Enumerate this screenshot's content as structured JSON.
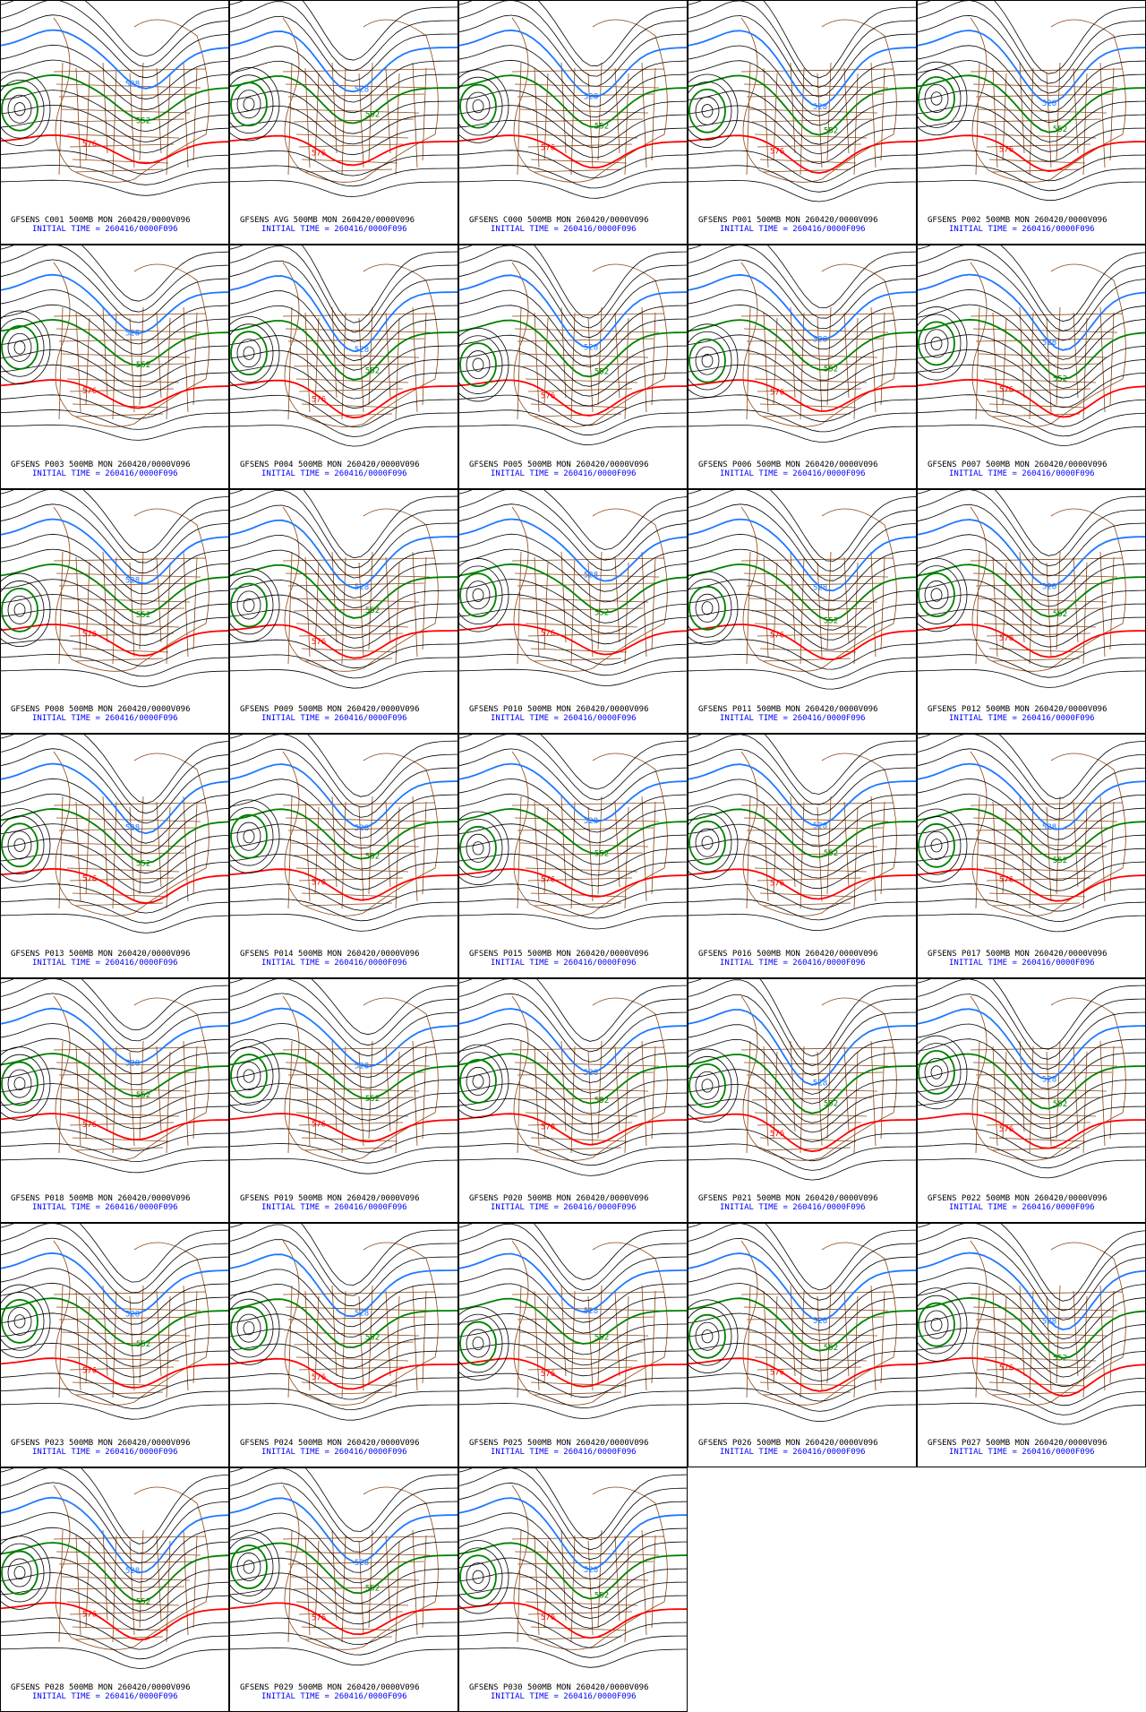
{
  "contour_labels": [
    "528",
    "552",
    "576"
  ],
  "panels": [
    {
      "title": "GFSENS C001 500MB MON 260420/0000V096",
      "initial": "INITIAL TIME = 260416/0000F096"
    },
    {
      "title": "GFSENS AVG 500MB MON 260420/0000V096",
      "initial": "INITIAL TIME = 260416/0000F096"
    },
    {
      "title": "GFSENS C000 500MB MON 260420/0000V096",
      "initial": "INITIAL TIME = 260416/0000F096"
    },
    {
      "title": "GFSENS P001 500MB MON 260420/0000V096",
      "initial": "INITIAL TIME = 260416/0000F096"
    },
    {
      "title": "GFSENS P002 500MB MON 260420/0000V096",
      "initial": "INITIAL TIME = 260416/0000F096"
    },
    {
      "title": "GFSENS P003 500MB MON 260420/0000V096",
      "initial": "INITIAL TIME = 260416/0000F096"
    },
    {
      "title": "GFSENS P004 500MB MON 260420/0000V096",
      "initial": "INITIAL TIME = 260416/0000F096"
    },
    {
      "title": "GFSENS P005 500MB MON 260420/0000V096",
      "initial": "INITIAL TIME = 260416/0000F096"
    },
    {
      "title": "GFSENS P006 500MB MON 260420/0000V096",
      "initial": "INITIAL TIME = 260416/0000F096"
    },
    {
      "title": "GFSENS P007 500MB MON 260420/0000V096",
      "initial": "INITIAL TIME = 260416/0000F096"
    },
    {
      "title": "GFSENS P008 500MB MON 260420/0000V096",
      "initial": "INITIAL TIME = 260416/0000F096"
    },
    {
      "title": "GFSENS P009 500MB MON 260420/0000V096",
      "initial": "INITIAL TIME = 260416/0000F096"
    },
    {
      "title": "GFSENS P010 500MB MON 260420/0000V096",
      "initial": "INITIAL TIME = 260416/0000F096"
    },
    {
      "title": "GFSENS P011 500MB MON 260420/0000V096",
      "initial": "INITIAL TIME = 260416/0000F096"
    },
    {
      "title": "GFSENS P012 500MB MON 260420/0000V096",
      "initial": "INITIAL TIME = 260416/0000F096"
    },
    {
      "title": "GFSENS P013 500MB MON 260420/0000V096",
      "initial": "INITIAL TIME = 260416/0000F096"
    },
    {
      "title": "GFSENS P014 500MB MON 260420/0000V096",
      "initial": "INITIAL TIME = 260416/0000F096"
    },
    {
      "title": "GFSENS P015 500MB MON 260420/0000V096",
      "initial": "INITIAL TIME = 260416/0000F096"
    },
    {
      "title": "GFSENS P016 500MB MON 260420/0000V096",
      "initial": "INITIAL TIME = 260416/0000F096"
    },
    {
      "title": "GFSENS P017 500MB MON 260420/0000V096",
      "initial": "INITIAL TIME = 260416/0000F096"
    },
    {
      "title": "GFSENS P018 500MB MON 260420/0000V096",
      "initial": "INITIAL TIME = 260416/0000F096"
    },
    {
      "title": "GFSENS P019 500MB MON 260420/0000V096",
      "initial": "INITIAL TIME = 260416/0000F096"
    },
    {
      "title": "GFSENS P020 500MB MON 260420/0000V096",
      "initial": "INITIAL TIME = 260416/0000F096"
    },
    {
      "title": "GFSENS P021 500MB MON 260420/0000V096",
      "initial": "INITIAL TIME = 260416/0000F096"
    },
    {
      "title": "GFSENS P022 500MB MON 260420/0000V096",
      "initial": "INITIAL TIME = 260416/0000F096"
    },
    {
      "title": "GFSENS P023 500MB MON 260420/0000V096",
      "initial": "INITIAL TIME = 260416/0000F096"
    },
    {
      "title": "GFSENS P024 500MB MON 260420/0000V096",
      "initial": "INITIAL TIME = 260416/0000F096"
    },
    {
      "title": "GFSENS P025 500MB MON 260420/0000V096",
      "initial": "INITIAL TIME = 260416/0000F096"
    },
    {
      "title": "GFSENS P026 500MB MON 260420/0000V096",
      "initial": "INITIAL TIME = 260416/0000F096"
    },
    {
      "title": "GFSENS P027 500MB MON 260420/0000V096",
      "initial": "INITIAL TIME = 260416/0000F096"
    },
    {
      "title": "GFSENS P028 500MB MON 260420/0000V096",
      "initial": "INITIAL TIME = 260416/0000F096"
    },
    {
      "title": "GFSENS P029 500MB MON 260420/0000V096",
      "initial": "INITIAL TIME = 260416/0000F096"
    },
    {
      "title": "GFSENS P030 500MB MON 260420/0000V096",
      "initial": "INITIAL TIME = 260416/0000F096"
    }
  ]
}
